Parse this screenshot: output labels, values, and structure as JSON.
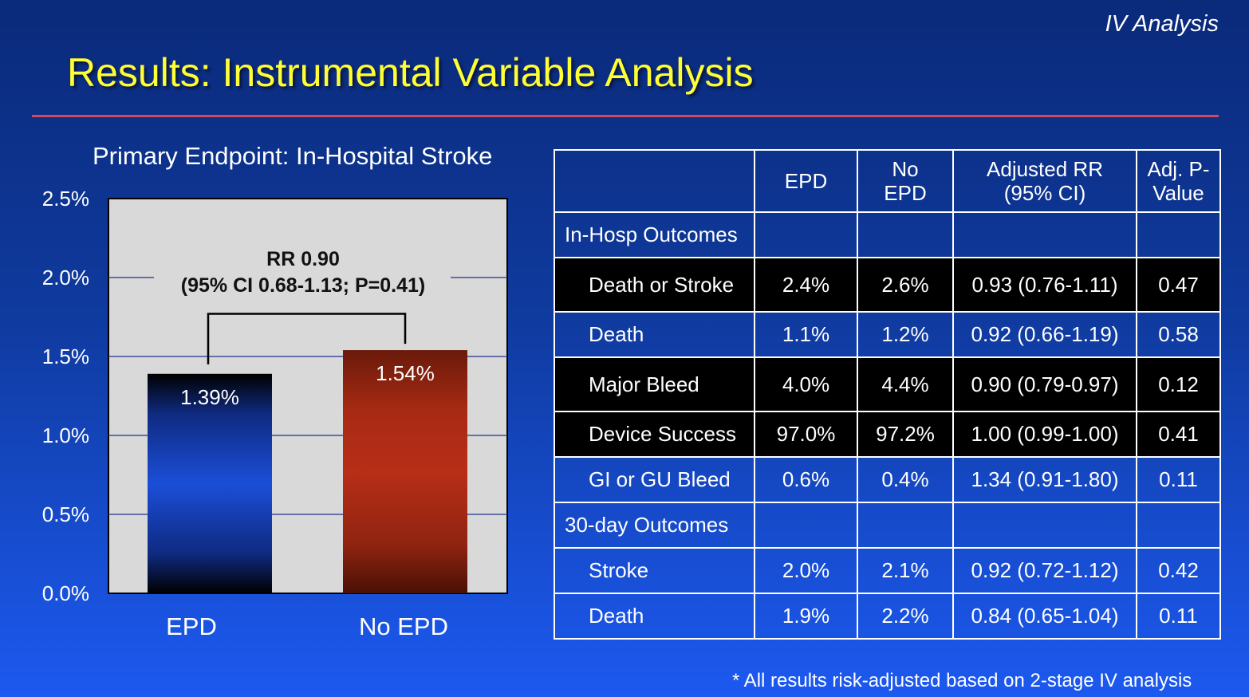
{
  "header": {
    "corner_label": "IV Analysis",
    "title": "Results: Instrumental Variable Analysis"
  },
  "chart_data": {
    "type": "bar",
    "title": "Primary Endpoint: In-Hospital Stroke",
    "categories": [
      "EPD",
      "No EPD"
    ],
    "values": [
      1.39,
      1.54
    ],
    "data_labels": [
      "1.39%",
      "1.54%"
    ],
    "ylim": [
      0,
      2.5
    ],
    "yticks": [
      "0.0%",
      "0.5%",
      "1.0%",
      "1.5%",
      "2.0%",
      "2.5%"
    ],
    "grid": true,
    "annotation": {
      "line1": "RR 0.90",
      "line2": "(95% CI 0.68-1.13;  P=0.41)"
    },
    "colors": {
      "EPD": "#1a49c8",
      "No EPD": "#b42c17",
      "plot_bg": "#d9d9d9",
      "grid": "#23318a"
    }
  },
  "table": {
    "headers": [
      "",
      "EPD",
      "No EPD",
      "Adjusted RR (95% CI)",
      "Adj. P-Value"
    ],
    "header_lines": [
      [
        ""
      ],
      [
        "EPD"
      ],
      [
        "No",
        "EPD"
      ],
      [
        "Adjusted RR",
        "(95% CI)"
      ],
      [
        "Adj. P-",
        "Value"
      ]
    ],
    "rows": [
      {
        "kind": "section",
        "label": "In-Hosp Outcomes",
        "epd": "",
        "no_epd": "",
        "rr": "",
        "p": ""
      },
      {
        "kind": "dark",
        "label": "Death or Stroke",
        "epd": "2.4%",
        "no_epd": "2.6%",
        "rr": "0.93 (0.76-1.11)",
        "p": "0.47"
      },
      {
        "kind": "plain",
        "label": "Death",
        "epd": "1.1%",
        "no_epd": "1.2%",
        "rr": "0.92 (0.66-1.19)",
        "p": "0.58"
      },
      {
        "kind": "dark",
        "label": "Major Bleed",
        "epd": "4.0%",
        "no_epd": "4.4%",
        "rr": "0.90 (0.79-0.97)",
        "p": "0.12"
      },
      {
        "kind": "dark",
        "label": "Device Success",
        "epd": "97.0%",
        "no_epd": "97.2%",
        "rr": "1.00 (0.99-1.00)",
        "p": "0.41"
      },
      {
        "kind": "plain",
        "label": "GI or GU Bleed",
        "epd": "0.6%",
        "no_epd": "0.4%",
        "rr": "1.34 (0.91-1.80)",
        "p": "0.11"
      },
      {
        "kind": "section",
        "label": "30-day Outcomes",
        "epd": "",
        "no_epd": "",
        "rr": "",
        "p": ""
      },
      {
        "kind": "plain",
        "label": "Stroke",
        "epd": "2.0%",
        "no_epd": "2.1%",
        "rr": "0.92 (0.72-1.12)",
        "p": "0.42"
      },
      {
        "kind": "plain",
        "label": "Death",
        "epd": "1.9%",
        "no_epd": "2.2%",
        "rr": "0.84 (0.65-1.04)",
        "p": "0.11"
      }
    ]
  },
  "footnote": "* All results risk-adjusted based on 2-stage IV analysis"
}
